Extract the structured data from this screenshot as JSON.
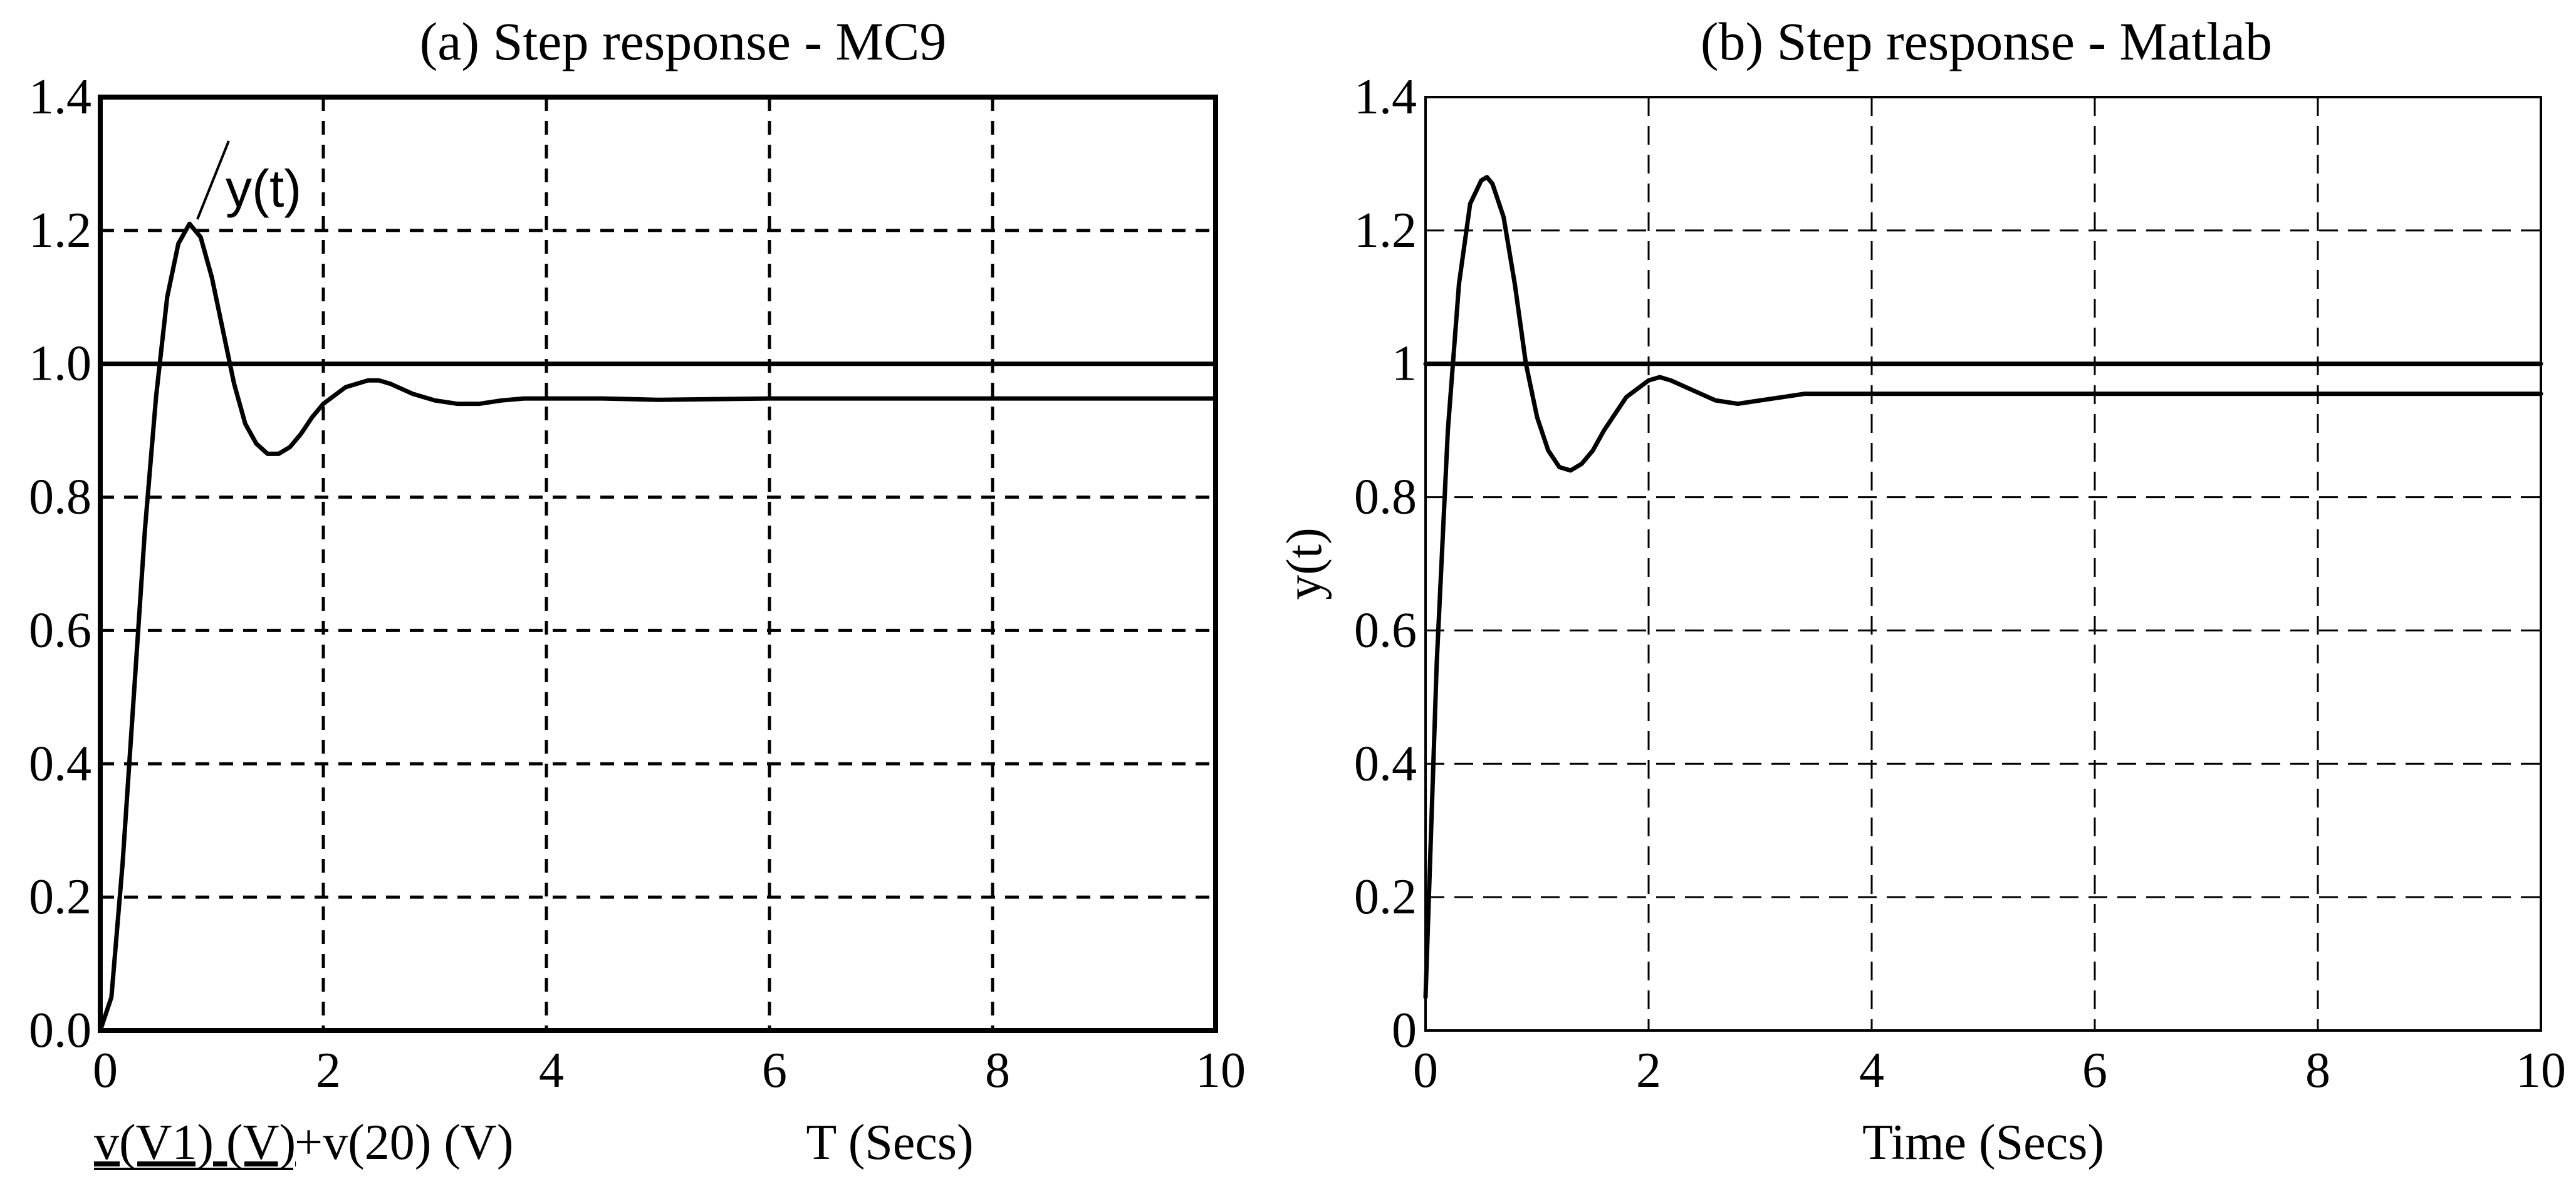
{
  "chart_data": [
    {
      "type": "line",
      "title": "(a) Step response - MC9",
      "xlabel": "T (Secs)",
      "ylabel": "",
      "bottom_left_label_underlined": "v(V1) (V)",
      "bottom_left_label_rest": "+v(20) (V)",
      "xlim": [
        0,
        10
      ],
      "ylim": [
        0,
        1.4
      ],
      "x_ticks": [
        "0",
        "2",
        "4",
        "6",
        "8",
        "10"
      ],
      "y_ticks": [
        "0.0",
        "0.2",
        "0.4",
        "0.6",
        "0.8",
        "1.0",
        "1.2",
        "1.4"
      ],
      "grid": true,
      "annotation": "y(t)",
      "series": [
        {
          "x": [
            0,
            0.1,
            0.2,
            0.3,
            0.4,
            0.5,
            0.6,
            0.7,
            0.8,
            0.9,
            1.0,
            1.1,
            1.2,
            1.3,
            1.4,
            1.5,
            1.6,
            1.7,
            1.8,
            1.9,
            2.0,
            2.2,
            2.4,
            2.5,
            2.6,
            2.8,
            3.0,
            3.2,
            3.4,
            3.6,
            3.8,
            4.0,
            4.5,
            5.0,
            6.0,
            7.0,
            8.0,
            9.0,
            10.0
          ],
          "y": [
            0.0,
            0.05,
            0.25,
            0.5,
            0.75,
            0.95,
            1.1,
            1.18,
            1.21,
            1.19,
            1.13,
            1.05,
            0.97,
            0.91,
            0.88,
            0.865,
            0.865,
            0.875,
            0.895,
            0.92,
            0.94,
            0.965,
            0.975,
            0.975,
            0.97,
            0.955,
            0.945,
            0.94,
            0.94,
            0.945,
            0.948,
            0.948,
            0.948,
            0.946,
            0.948,
            0.948,
            0.948,
            0.948,
            0.948
          ]
        },
        {
          "x": [
            0,
            10
          ],
          "y": [
            1.0,
            1.0
          ]
        }
      ]
    },
    {
      "type": "line",
      "title": "(b) Step response - Matlab",
      "xlabel": "Time (Secs)",
      "ylabel": "y(t)",
      "xlim": [
        0,
        10
      ],
      "ylim": [
        0,
        1.4
      ],
      "x_ticks": [
        "0",
        "2",
        "4",
        "6",
        "8",
        "10"
      ],
      "y_ticks": [
        "0",
        "0.2",
        "0.4",
        "0.6",
        "0.8",
        "1",
        "1.2",
        "1.4"
      ],
      "grid": true,
      "series": [
        {
          "x": [
            0,
            0.05,
            0.1,
            0.2,
            0.3,
            0.4,
            0.5,
            0.55,
            0.6,
            0.7,
            0.8,
            0.9,
            1.0,
            1.1,
            1.2,
            1.3,
            1.4,
            1.5,
            1.6,
            1.8,
            2.0,
            2.1,
            2.2,
            2.4,
            2.6,
            2.8,
            3.0,
            3.2,
            3.4,
            4.0,
            5.0,
            6.0,
            7.0,
            8.0,
            9.0,
            10.0
          ],
          "y": [
            0.05,
            0.3,
            0.55,
            0.9,
            1.12,
            1.24,
            1.275,
            1.28,
            1.27,
            1.22,
            1.12,
            1.0,
            0.92,
            0.87,
            0.845,
            0.84,
            0.85,
            0.87,
            0.9,
            0.95,
            0.975,
            0.98,
            0.975,
            0.96,
            0.945,
            0.94,
            0.945,
            0.95,
            0.955,
            0.955,
            0.955,
            0.955,
            0.955,
            0.955,
            0.955,
            0.955
          ]
        },
        {
          "x": [
            0,
            10
          ],
          "y": [
            1.0,
            1.0
          ]
        }
      ]
    }
  ]
}
